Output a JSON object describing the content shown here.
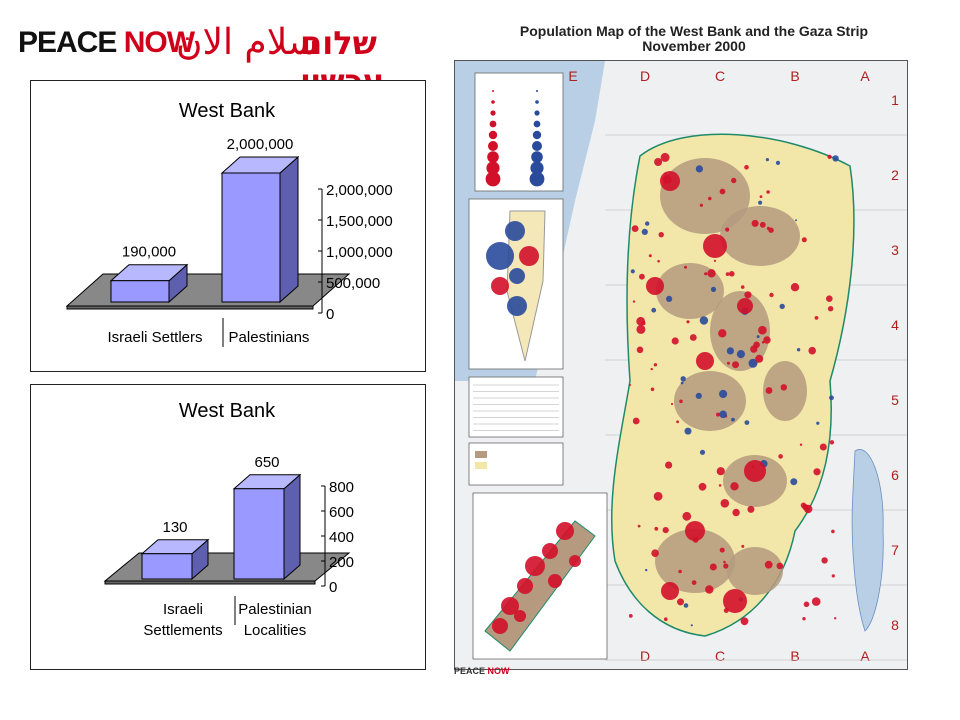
{
  "logo": {
    "english_peace": "PEACE",
    "english_now": "NOW",
    "arabic": "سلام الان",
    "hebrew": "שלום עכשיו"
  },
  "charts": [
    {
      "type": "bar",
      "title": "West Bank",
      "categories": [
        "Israeli Settlers",
        "Palestinians"
      ],
      "category_lines": [
        [
          "Israeli Settlers"
        ],
        [
          "Palestinians"
        ]
      ],
      "values": [
        190000,
        2000000
      ],
      "value_labels": [
        "190,000",
        "2,000,000"
      ],
      "ticks": [
        "0",
        "500,000",
        "1,000,000",
        "1,500,000",
        "2,000,000"
      ],
      "ylim": [
        0,
        2000000
      ]
    },
    {
      "type": "bar",
      "title": "West Bank",
      "categories": [
        "Israeli Settlements",
        "Palestinian Localities"
      ],
      "category_lines": [
        [
          "Israeli",
          "Settlements"
        ],
        [
          "Palestinian",
          "Localities"
        ]
      ],
      "values": [
        130,
        650
      ],
      "value_labels": [
        "130",
        "650"
      ],
      "ticks": [
        "0",
        "200",
        "400",
        "600",
        "800"
      ],
      "ylim": [
        0,
        800
      ]
    }
  ],
  "chart_data": [
    {
      "type": "bar",
      "title": "West Bank",
      "categories": [
        "Israeli Settlers",
        "Palestinians"
      ],
      "values": [
        190000,
        2000000
      ],
      "ylim": [
        0,
        2000000
      ]
    },
    {
      "type": "bar",
      "title": "West Bank",
      "categories": [
        "Israeli Settlements",
        "Palestinian Localities"
      ],
      "values": [
        130,
        650
      ],
      "ylim": [
        0,
        800
      ]
    }
  ],
  "map": {
    "title_line1": "Population Map of the West Bank and the Gaza Strip",
    "title_line2": "November 2000",
    "col_letters": [
      "E",
      "D",
      "C",
      "B",
      "A"
    ],
    "row_numbers": [
      "1",
      "2",
      "3",
      "4",
      "5",
      "6",
      "7",
      "8"
    ],
    "footer_peace": "PEACE",
    "footer_now": "NOW",
    "colors": {
      "palestinian": "#d2102a",
      "israeli": "#2a4a9c",
      "area_a": "#b59a7f",
      "area_b": "#f2e7a9",
      "sea": "#b9cfe6"
    }
  }
}
